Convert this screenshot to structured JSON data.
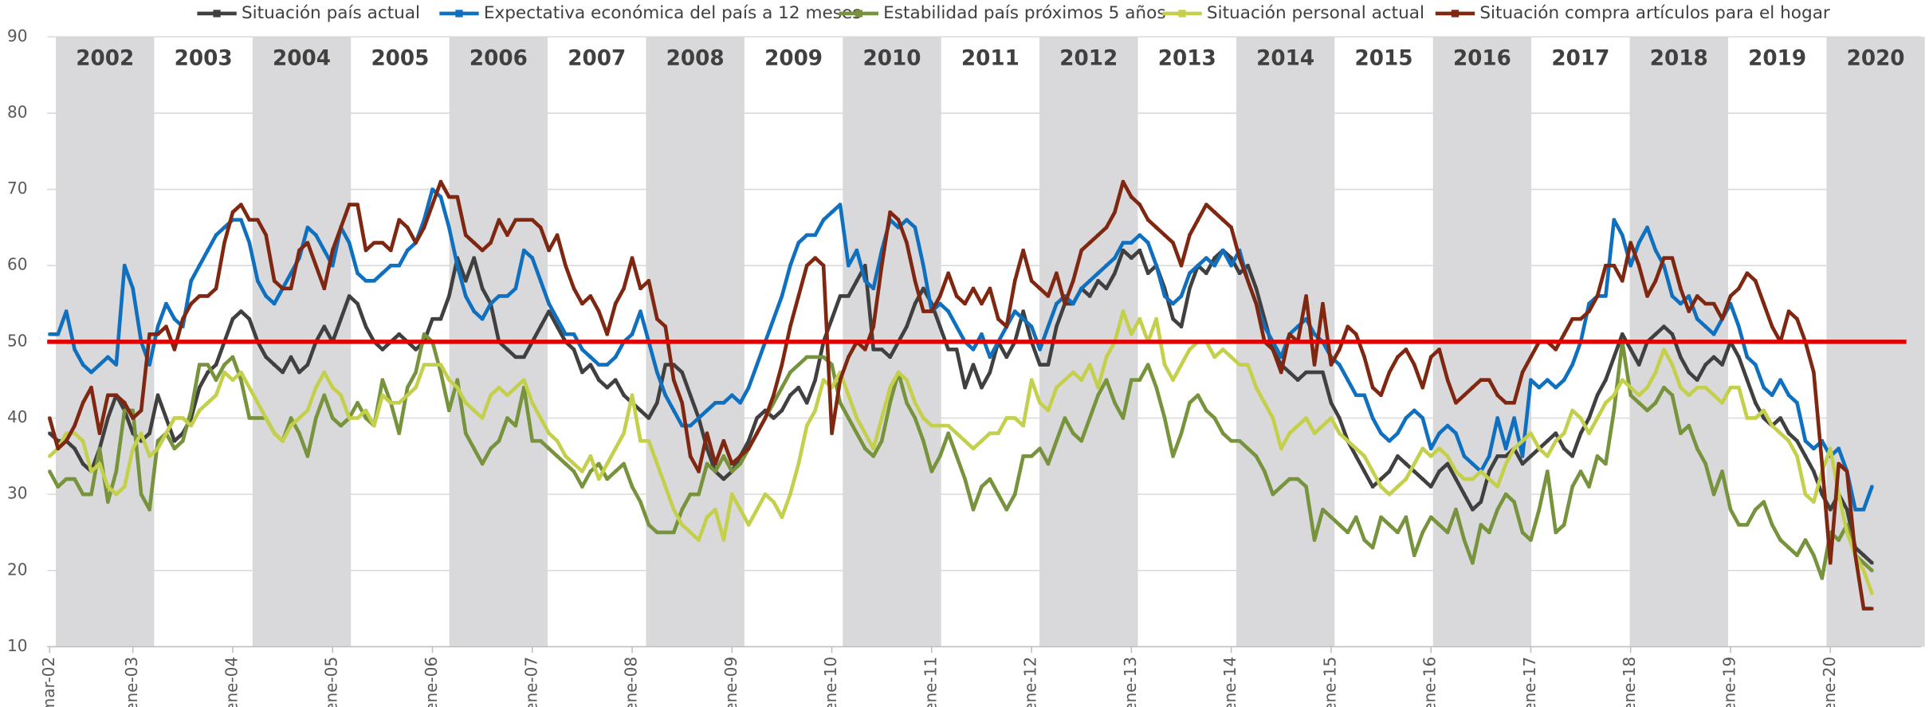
{
  "chart_data": {
    "type": "line",
    "categories": [
      "mar-02",
      null,
      null,
      null,
      null,
      null,
      null,
      null,
      null,
      null,
      "ene-03",
      null,
      null,
      null,
      null,
      null,
      null,
      null,
      null,
      null,
      null,
      null,
      "ene-04",
      null,
      null,
      null,
      null,
      null,
      null,
      null,
      null,
      null,
      null,
      null,
      "ene-05",
      null,
      null,
      null,
      null,
      null,
      null,
      null,
      null,
      null,
      null,
      null,
      "ene-06",
      null,
      null,
      null,
      null,
      null,
      null,
      null,
      null,
      null,
      null,
      null,
      "ene-07",
      null,
      null,
      null,
      null,
      null,
      null,
      null,
      null,
      null,
      null,
      null,
      "ene-08",
      null,
      null,
      null,
      null,
      null,
      null,
      null,
      null,
      null,
      null,
      null,
      "ene-09",
      null,
      null,
      null,
      null,
      null,
      null,
      null,
      null,
      null,
      null,
      null,
      "ene-10",
      null,
      null,
      null,
      null,
      null,
      null,
      null,
      null,
      null,
      null,
      null,
      "ene-11",
      null,
      null,
      null,
      null,
      null,
      null,
      null,
      null,
      null,
      null,
      null,
      "ene-12",
      null,
      null,
      null,
      null,
      null,
      null,
      null,
      null,
      null,
      null,
      null,
      "ene-13",
      null,
      null,
      null,
      null,
      null,
      null,
      null,
      null,
      null,
      null,
      null,
      "ene-14",
      null,
      null,
      null,
      null,
      null,
      null,
      null,
      null,
      null,
      null,
      null,
      "ene-15",
      null,
      null,
      null,
      null,
      null,
      null,
      null,
      null,
      null,
      null,
      null,
      "ene-16",
      null,
      null,
      null,
      null,
      null,
      null,
      null,
      null,
      null,
      null,
      null,
      "ene-17",
      null,
      null,
      null,
      null,
      null,
      null,
      null,
      null,
      null,
      null,
      null,
      "ene-18",
      null,
      null,
      null,
      null,
      null,
      null,
      null,
      null,
      null,
      null,
      null,
      "ene-19",
      null,
      null,
      null,
      null,
      null,
      null,
      null,
      null,
      null,
      null,
      null,
      "ene-20",
      null,
      null,
      null,
      null,
      null
    ],
    "year_labels": [
      "2002",
      "2003",
      "2004",
      "2005",
      "2006",
      "2007",
      "2008",
      "2009",
      "2010",
      "2011",
      "2012",
      "2013",
      "2014",
      "2015",
      "2016",
      "2017",
      "2018",
      "2019",
      "2020"
    ],
    "ylim": [
      10,
      90
    ],
    "yticks": [
      10,
      20,
      30,
      40,
      50,
      60,
      70,
      80,
      90
    ],
    "grid": true,
    "reference_line": {
      "value": 50,
      "color": "#e00000"
    },
    "legend": "top",
    "series": [
      {
        "name": "Situación país actual",
        "color": "#404040",
        "values": [
          38,
          37,
          37,
          36,
          34,
          33,
          36,
          40,
          43,
          41,
          38,
          37,
          38,
          43,
          40,
          37,
          38,
          40,
          44,
          46,
          47,
          50,
          53,
          54,
          53,
          50,
          48,
          47,
          46,
          48,
          46,
          47,
          50,
          52,
          50,
          53,
          56,
          55,
          52,
          50,
          49,
          50,
          51,
          50,
          49,
          50,
          53,
          53,
          56,
          61,
          58,
          61,
          57,
          55,
          50,
          49,
          48,
          48,
          50,
          52,
          54,
          52,
          50,
          49,
          46,
          47,
          45,
          44,
          45,
          43,
          42,
          41,
          40,
          42,
          47,
          47,
          46,
          43,
          40,
          36,
          33,
          32,
          33,
          35,
          37,
          40,
          41,
          40,
          41,
          43,
          44,
          42,
          45,
          50,
          53,
          56,
          56,
          58,
          60,
          49,
          49,
          48,
          50,
          52,
          55,
          57,
          55,
          52,
          49,
          49,
          44,
          47,
          44,
          46,
          50,
          48,
          50,
          54,
          50,
          47,
          47,
          52,
          55,
          55,
          57,
          56,
          58,
          57,
          59,
          62,
          61,
          62,
          59,
          60,
          57,
          53,
          52,
          57,
          60,
          59,
          61,
          62,
          61,
          59,
          60,
          57,
          53,
          49,
          47,
          46,
          45,
          46,
          46,
          46,
          42,
          40,
          37,
          35,
          33,
          31,
          32,
          33,
          35,
          34,
          33,
          32,
          31,
          33,
          34,
          32,
          30,
          28,
          29,
          33,
          35,
          35,
          36,
          34,
          35,
          36,
          37,
          38,
          36,
          35,
          38,
          40,
          43,
          45,
          48,
          51,
          49,
          47,
          50,
          51,
          52,
          51,
          48,
          46,
          45,
          47,
          48,
          47,
          50,
          48,
          45,
          42,
          40,
          39,
          40,
          38,
          37,
          35,
          33,
          30,
          28,
          30,
          28,
          23,
          22,
          21
        ]
      },
      {
        "name": "Expectativa económica del país a 12 meses",
        "color": "#1070c0",
        "values": [
          51,
          51,
          54,
          49,
          47,
          46,
          47,
          48,
          47,
          60,
          57,
          50,
          47,
          52,
          55,
          53,
          52,
          58,
          60,
          62,
          64,
          65,
          66,
          66,
          63,
          58,
          56,
          55,
          57,
          59,
          61,
          65,
          64,
          62,
          60,
          65,
          63,
          59,
          58,
          58,
          59,
          60,
          60,
          62,
          63,
          66,
          70,
          69,
          65,
          60,
          56,
          54,
          53,
          55,
          56,
          56,
          57,
          62,
          61,
          58,
          55,
          53,
          51,
          51,
          49,
          48,
          47,
          47,
          48,
          50,
          51,
          54,
          50,
          46,
          43,
          41,
          39,
          39,
          40,
          41,
          42,
          42,
          43,
          42,
          44,
          47,
          50,
          53,
          56,
          60,
          63,
          64,
          64,
          66,
          67,
          68,
          60,
          62,
          58,
          57,
          62,
          66,
          65,
          66,
          65,
          60,
          54,
          55,
          54,
          52,
          50,
          49,
          51,
          48,
          50,
          52,
          54,
          53,
          52,
          49,
          52,
          55,
          56,
          55,
          57,
          58,
          59,
          60,
          61,
          63,
          63,
          64,
          63,
          60,
          56,
          55,
          56,
          59,
          60,
          61,
          60,
          62,
          60,
          62,
          58,
          55,
          52,
          50,
          48,
          51,
          52,
          53,
          51,
          50,
          48,
          47,
          45,
          43,
          43,
          40,
          38,
          37,
          38,
          40,
          41,
          40,
          36,
          38,
          39,
          38,
          35,
          34,
          33,
          35,
          40,
          36,
          40,
          35,
          45,
          44,
          45,
          44,
          45,
          47,
          50,
          55,
          56,
          56,
          66,
          64,
          60,
          63,
          65,
          62,
          60,
          56,
          55,
          56,
          53,
          52,
          51,
          53,
          55,
          52,
          48,
          47,
          44,
          43,
          45,
          43,
          42,
          37,
          36,
          37,
          35,
          36,
          33,
          28,
          28,
          31
        ]
      },
      {
        "name": "Estabilidad país próximos 5 años",
        "color": "#77933c",
        "values": [
          33,
          31,
          32,
          32,
          30,
          30,
          36,
          29,
          33,
          41,
          41,
          30,
          28,
          37,
          38,
          36,
          37,
          41,
          47,
          47,
          45,
          47,
          48,
          45,
          40,
          40,
          40,
          38,
          37,
          40,
          38,
          35,
          40,
          43,
          40,
          39,
          40,
          42,
          40,
          39,
          45,
          42,
          38,
          44,
          46,
          51,
          50,
          46,
          41,
          45,
          38,
          36,
          34,
          36,
          37,
          40,
          39,
          44,
          37,
          37,
          36,
          35,
          34,
          33,
          31,
          33,
          34,
          32,
          33,
          34,
          31,
          29,
          26,
          25,
          25,
          25,
          28,
          30,
          30,
          34,
          33,
          35,
          33,
          34,
          36,
          38,
          40,
          42,
          44,
          46,
          47,
          48,
          48,
          48,
          47,
          42,
          40,
          38,
          36,
          35,
          37,
          42,
          46,
          42,
          40,
          37,
          33,
          35,
          38,
          35,
          32,
          28,
          31,
          32,
          30,
          28,
          30,
          35,
          35,
          36,
          34,
          37,
          40,
          38,
          37,
          40,
          43,
          45,
          42,
          40,
          45,
          45,
          47,
          44,
          40,
          35,
          38,
          42,
          43,
          41,
          40,
          38,
          37,
          37,
          36,
          35,
          33,
          30,
          31,
          32,
          32,
          31,
          24,
          28,
          27,
          26,
          25,
          27,
          24,
          23,
          27,
          26,
          25,
          27,
          22,
          25,
          27,
          26,
          25,
          28,
          24,
          21,
          26,
          25,
          28,
          30,
          29,
          25,
          24,
          28,
          33,
          25,
          26,
          31,
          33,
          31,
          35,
          34,
          41,
          50,
          43,
          42,
          41,
          42,
          44,
          43,
          38,
          39,
          36,
          34,
          30,
          33,
          28,
          26,
          26,
          28,
          29,
          26,
          24,
          23,
          22,
          24,
          22,
          19,
          25,
          24,
          26,
          22,
          21,
          20
        ]
      },
      {
        "name": "Situación personal actual",
        "color": "#c4d04c",
        "values": [
          35,
          36,
          38,
          38,
          37,
          33,
          34,
          31,
          30,
          31,
          36,
          38,
          35,
          36,
          38,
          40,
          40,
          39,
          41,
          42,
          43,
          46,
          45,
          46,
          44,
          42,
          40,
          38,
          37,
          39,
          40,
          41,
          44,
          46,
          44,
          43,
          40,
          40,
          41,
          39,
          43,
          42,
          42,
          43,
          44,
          47,
          47,
          47,
          45,
          44,
          42,
          41,
          40,
          43,
          44,
          43,
          44,
          45,
          42,
          40,
          38,
          37,
          35,
          34,
          33,
          35,
          32,
          34,
          36,
          38,
          43,
          37,
          37,
          34,
          31,
          28,
          26,
          25,
          24,
          27,
          28,
          24,
          30,
          28,
          26,
          28,
          30,
          29,
          27,
          30,
          34,
          39,
          41,
          45,
          44,
          46,
          43,
          40,
          38,
          36,
          40,
          44,
          46,
          45,
          42,
          40,
          39,
          39,
          39,
          38,
          37,
          36,
          37,
          38,
          38,
          40,
          40,
          39,
          45,
          42,
          41,
          44,
          45,
          46,
          45,
          47,
          44,
          48,
          50,
          54,
          51,
          53,
          50,
          53,
          47,
          45,
          47,
          49,
          50,
          50,
          48,
          49,
          48,
          47,
          47,
          44,
          42,
          40,
          36,
          38,
          39,
          40,
          38,
          39,
          40,
          38,
          37,
          36,
          35,
          33,
          31,
          30,
          31,
          32,
          34,
          36,
          35,
          36,
          35,
          33,
          32,
          32,
          33,
          32,
          31,
          34,
          36,
          37,
          38,
          36,
          35,
          37,
          38,
          41,
          40,
          38,
          40,
          42,
          43,
          45,
          44,
          43,
          44,
          46,
          49,
          47,
          44,
          43,
          44,
          44,
          43,
          42,
          44,
          44,
          40,
          40,
          41,
          39,
          38,
          37,
          35,
          30,
          29,
          33,
          36,
          30,
          25,
          22,
          20,
          17
        ]
      },
      {
        "name": "Situación compra artículos para el hogar",
        "color": "#7f2710",
        "values": [
          40,
          36,
          37,
          39,
          42,
          44,
          38,
          43,
          43,
          42,
          40,
          41,
          51,
          51,
          52,
          49,
          53,
          55,
          56,
          56,
          57,
          63,
          67,
          68,
          66,
          66,
          64,
          58,
          57,
          57,
          62,
          63,
          60,
          57,
          62,
          65,
          68,
          68,
          62,
          63,
          63,
          62,
          66,
          65,
          63,
          65,
          68,
          71,
          69,
          69,
          64,
          63,
          62,
          63,
          66,
          64,
          66,
          66,
          66,
          65,
          62,
          64,
          60,
          57,
          55,
          56,
          54,
          51,
          55,
          57,
          61,
          57,
          58,
          53,
          52,
          45,
          42,
          35,
          33,
          38,
          34,
          37,
          34,
          35,
          36,
          38,
          40,
          43,
          47,
          52,
          56,
          60,
          61,
          60,
          38,
          45,
          48,
          50,
          49,
          52,
          60,
          67,
          66,
          63,
          58,
          54,
          54,
          56,
          59,
          56,
          55,
          57,
          55,
          57,
          53,
          52,
          58,
          62,
          58,
          57,
          56,
          59,
          55,
          58,
          62,
          63,
          64,
          65,
          67,
          71,
          69,
          68,
          66,
          65,
          64,
          63,
          60,
          64,
          66,
          68,
          67,
          66,
          65,
          61,
          58,
          55,
          50,
          49,
          46,
          51,
          50,
          56,
          47,
          55,
          47,
          49,
          52,
          51,
          48,
          44,
          43,
          46,
          48,
          49,
          47,
          44,
          48,
          49,
          45,
          42,
          43,
          44,
          45,
          45,
          43,
          42,
          42,
          46,
          48,
          50,
          50,
          49,
          51,
          53,
          53,
          54,
          56,
          60,
          60,
          58,
          63,
          60,
          56,
          58,
          61,
          61,
          57,
          54,
          56,
          55,
          55,
          53,
          56,
          57,
          59,
          58,
          55,
          52,
          50,
          54,
          53,
          50,
          46,
          34,
          21,
          34,
          33,
          22,
          15,
          15
        ]
      }
    ]
  }
}
